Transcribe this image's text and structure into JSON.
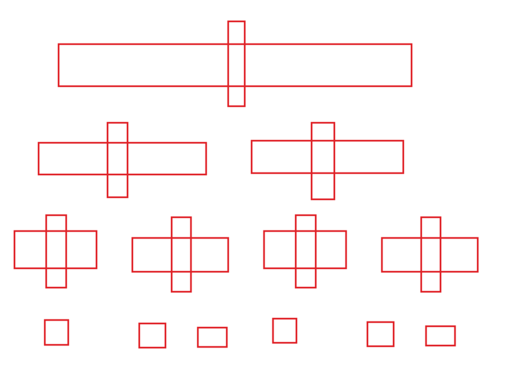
{
  "diagram": {
    "stroke_color": "#E02228",
    "background_color": "#FFFFFF",
    "levels": [
      {
        "level": 1,
        "shapes": [
          "cross"
        ]
      },
      {
        "level": 2,
        "shapes": [
          "cross",
          "cross"
        ]
      },
      {
        "level": 3,
        "shapes": [
          "cross",
          "cross",
          "cross",
          "cross"
        ]
      },
      {
        "level": 4,
        "shapes": [
          "square",
          "square",
          "rectangle",
          "square",
          "square",
          "rectangle"
        ]
      }
    ]
  }
}
